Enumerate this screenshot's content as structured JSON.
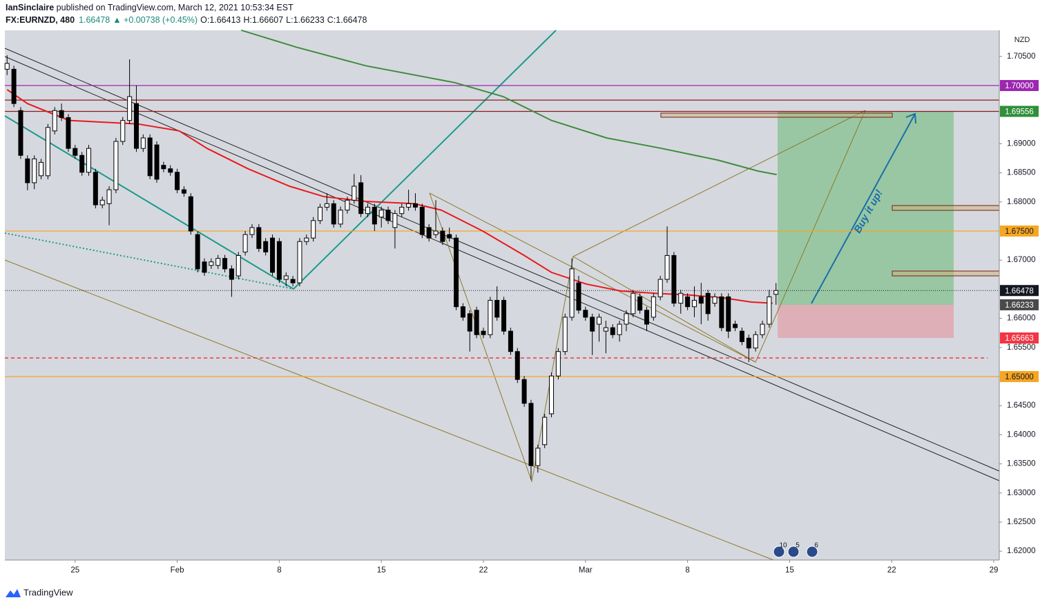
{
  "header": {
    "author": "IanSinclaire",
    "published": " published on TradingView.com, March 12, 2021 10:53:34 EST",
    "symbol": "FX:EURNZD, 480",
    "last": "1.66478",
    "change": "▲ +0.00738 (+0.45%)",
    "ohlc": [
      "O:1.66413",
      "H:1.66607",
      "L:1.66233",
      "C:1.66478"
    ]
  },
  "footer": {
    "brand": "TradingView"
  },
  "chart_data": {
    "type": "candlestick",
    "currency": "NZD",
    "annotation": "Buy it up!",
    "xlim": [
      -10.33,
      135.81
    ],
    "ylim": [
      1.61848,
      1.70948
    ],
    "xticks": [
      {
        "value": 0,
        "label": "25"
      },
      {
        "value": 15,
        "label": "Feb"
      },
      {
        "value": 30,
        "label": "8"
      },
      {
        "value": 45,
        "label": "15"
      },
      {
        "value": 60,
        "label": "22"
      },
      {
        "value": 75,
        "label": "Mar"
      },
      {
        "value": 90,
        "label": "8"
      },
      {
        "value": 105,
        "label": "15"
      },
      {
        "value": 120,
        "label": "22"
      },
      {
        "value": 135,
        "label": "29"
      }
    ],
    "yticks": [
      {
        "value": 1.705,
        "label": "1.70500"
      },
      {
        "value": 1.69,
        "label": "1.69000"
      },
      {
        "value": 1.685,
        "label": "1.68500"
      },
      {
        "value": 1.68,
        "label": "1.68000"
      },
      {
        "value": 1.67,
        "label": "1.67000"
      },
      {
        "value": 1.66,
        "label": "1.66000"
      },
      {
        "value": 1.655,
        "label": "1.65500"
      },
      {
        "value": 1.645,
        "label": "1.64500"
      },
      {
        "value": 1.64,
        "label": "1.64000"
      },
      {
        "value": 1.635,
        "label": "1.63500"
      },
      {
        "value": 1.63,
        "label": "1.63000"
      },
      {
        "value": 1.625,
        "label": "1.62500"
      },
      {
        "value": 1.62,
        "label": "1.62000"
      }
    ],
    "x": [
      -10,
      -9,
      -8,
      -7,
      -6,
      -5,
      -4,
      -3,
      -2,
      -1,
      0,
      1,
      2,
      3,
      4,
      5,
      6,
      7,
      8,
      9,
      10,
      11,
      12,
      13,
      14,
      15,
      16,
      17,
      18,
      19,
      20,
      21,
      22,
      23,
      24,
      25,
      26,
      27,
      28,
      29,
      30,
      31,
      32,
      33,
      34,
      35,
      36,
      37,
      38,
      39,
      40,
      41,
      42,
      43,
      44,
      45,
      46,
      47,
      48,
      49,
      50,
      51,
      52,
      53,
      54,
      55,
      56,
      57,
      58,
      59,
      60,
      61,
      62,
      63,
      64,
      65,
      66,
      67,
      68,
      69,
      70,
      71,
      72,
      73,
      74,
      75,
      76,
      77,
      78,
      79,
      80,
      81,
      82,
      83,
      84,
      85,
      86,
      87,
      88,
      89,
      90,
      91,
      92,
      93,
      94,
      95,
      96,
      97,
      98,
      99,
      100,
      101,
      102,
      103
    ],
    "candles": [
      [
        1.7028,
        1.7052,
        1.7018,
        1.7038
      ],
      [
        1.7028,
        1.7034,
        1.6963,
        1.6969
      ],
      [
        1.6957,
        1.6963,
        1.6874,
        1.688
      ],
      [
        1.6874,
        1.688,
        1.682,
        1.6833
      ],
      [
        1.6833,
        1.688,
        1.6822,
        1.6874
      ],
      [
        1.6845,
        1.6874,
        1.6839,
        1.6868
      ],
      [
        1.6845,
        1.6934,
        1.6839,
        1.6928
      ],
      [
        1.6922,
        1.6963,
        1.6916,
        1.6957
      ],
      [
        1.6957,
        1.6969,
        1.6939,
        1.6945
      ],
      [
        1.6945,
        1.6951,
        1.6886,
        1.6892
      ],
      [
        1.6892,
        1.6898,
        1.6874,
        1.688
      ],
      [
        1.688,
        1.6886,
        1.6845,
        1.6851
      ],
      [
        1.6851,
        1.6898,
        1.6845,
        1.6892
      ],
      [
        1.6851,
        1.6857,
        1.6789,
        1.6795
      ],
      [
        1.6795,
        1.6809,
        1.6789,
        1.6803
      ],
      [
        1.6797,
        1.6827,
        1.676,
        1.6821
      ],
      [
        1.6821,
        1.691,
        1.6815,
        1.6904
      ],
      [
        1.6904,
        1.6946,
        1.6898,
        1.694
      ],
      [
        1.694,
        1.7045,
        1.6934,
        1.6981
      ],
      [
        1.6969,
        1.7,
        1.6886,
        1.6892
      ],
      [
        1.6892,
        1.6916,
        1.6886,
        1.691
      ],
      [
        1.691,
        1.6916,
        1.6839,
        1.6845
      ],
      [
        1.6898,
        1.6904,
        1.6833,
        1.6839
      ],
      [
        1.6863,
        1.6869,
        1.6851,
        1.6857
      ],
      [
        1.6857,
        1.6863,
        1.6845,
        1.6851
      ],
      [
        1.6851,
        1.6857,
        1.6815,
        1.6821
      ],
      [
        1.6821,
        1.6827,
        1.6809,
        1.6815
      ],
      [
        1.6809,
        1.6815,
        1.6744,
        1.675
      ],
      [
        1.6744,
        1.675,
        1.6679,
        1.6685
      ],
      [
        1.6697,
        1.6703,
        1.6673,
        1.6679
      ],
      [
        1.6691,
        1.6703,
        1.6685,
        1.6697
      ],
      [
        1.6691,
        1.6709,
        1.6685,
        1.6703
      ],
      [
        1.6703,
        1.6709,
        1.6679,
        1.6685
      ],
      [
        1.6685,
        1.6691,
        1.6637,
        1.6667
      ],
      [
        1.6673,
        1.6714,
        1.6667,
        1.6708
      ],
      [
        1.6714,
        1.675,
        1.6708,
        1.6744
      ],
      [
        1.6744,
        1.6762,
        1.6738,
        1.6756
      ],
      [
        1.6756,
        1.6762,
        1.6714,
        1.672
      ],
      [
        1.6732,
        1.6738,
        1.6708,
        1.6714
      ],
      [
        1.6738,
        1.6744,
        1.6673,
        1.6679
      ],
      [
        1.6732,
        1.6738,
        1.6661,
        1.6667
      ],
      [
        1.6667,
        1.6679,
        1.6655,
        1.6673
      ],
      [
        1.6667,
        1.6673,
        1.6655,
        1.6661
      ],
      [
        1.6661,
        1.6738,
        1.6655,
        1.6732
      ],
      [
        1.6732,
        1.6744,
        1.6726,
        1.6738
      ],
      [
        1.6738,
        1.6774,
        1.6732,
        1.6768
      ],
      [
        1.6768,
        1.6797,
        1.6762,
        1.6791
      ],
      [
        1.6791,
        1.6815,
        1.6785,
        1.6797
      ],
      [
        1.6797,
        1.6803,
        1.6756,
        1.6762
      ],
      [
        1.6762,
        1.6792,
        1.6756,
        1.6786
      ],
      [
        1.6786,
        1.6809,
        1.678,
        1.6803
      ],
      [
        1.6803,
        1.6848,
        1.6797,
        1.6827
      ],
      [
        1.6833,
        1.6846,
        1.6774,
        1.678
      ],
      [
        1.678,
        1.6797,
        1.6774,
        1.6791
      ],
      [
        1.6791,
        1.6797,
        1.675,
        1.6762
      ],
      [
        1.6774,
        1.6792,
        1.6756,
        1.6786
      ],
      [
        1.6786,
        1.6792,
        1.6762,
        1.6768
      ],
      [
        1.6756,
        1.6786,
        1.672,
        1.678
      ],
      [
        1.678,
        1.6797,
        1.6774,
        1.6791
      ],
      [
        1.6791,
        1.6821,
        1.6785,
        1.6797
      ],
      [
        1.6797,
        1.6815,
        1.6785,
        1.6791
      ],
      [
        1.6791,
        1.6797,
        1.6738,
        1.6744
      ],
      [
        1.6756,
        1.6762,
        1.6732,
        1.6738
      ],
      [
        1.6744,
        1.6803,
        1.6738,
        1.675
      ],
      [
        1.675,
        1.6756,
        1.6726,
        1.6732
      ],
      [
        1.6744,
        1.6756,
        1.6732,
        1.6738
      ],
      [
        1.6738,
        1.6744,
        1.6614,
        1.662
      ],
      [
        1.662,
        1.6626,
        1.6596,
        1.6602
      ],
      [
        1.6608,
        1.6614,
        1.6543,
        1.6578
      ],
      [
        1.6614,
        1.662,
        1.6566,
        1.6572
      ],
      [
        1.6578,
        1.6584,
        1.6566,
        1.6572
      ],
      [
        1.6572,
        1.6637,
        1.6566,
        1.6631
      ],
      [
        1.6631,
        1.6655,
        1.6596,
        1.6602
      ],
      [
        1.6631,
        1.6637,
        1.6572,
        1.6578
      ],
      [
        1.6578,
        1.6584,
        1.6537,
        1.6543
      ],
      [
        1.6543,
        1.6549,
        1.6489,
        1.6495
      ],
      [
        1.6495,
        1.6501,
        1.6448,
        1.6454
      ],
      [
        1.6454,
        1.646,
        1.6323,
        1.6347
      ],
      [
        1.6347,
        1.6383,
        1.6335,
        1.6377
      ],
      [
        1.6383,
        1.6436,
        1.6377,
        1.643
      ],
      [
        1.6436,
        1.6507,
        1.643,
        1.6501
      ],
      [
        1.6501,
        1.6549,
        1.6495,
        1.6543
      ],
      [
        1.6543,
        1.6608,
        1.6537,
        1.6602
      ],
      [
        1.6602,
        1.6703,
        1.6596,
        1.6685
      ],
      [
        1.6661,
        1.6673,
        1.6608,
        1.6614
      ],
      [
        1.6614,
        1.662,
        1.6596,
        1.6602
      ],
      [
        1.6602,
        1.6608,
        1.6537,
        1.6578
      ],
      [
        1.659,
        1.6608,
        1.656,
        1.6602
      ],
      [
        1.6578,
        1.6596,
        1.654,
        1.6584
      ],
      [
        1.6584,
        1.659,
        1.6566,
        1.6572
      ],
      [
        1.6572,
        1.6596,
        1.656,
        1.659
      ],
      [
        1.659,
        1.6614,
        1.6578,
        1.6608
      ],
      [
        1.6608,
        1.6649,
        1.6602,
        1.6643
      ],
      [
        1.6637,
        1.6643,
        1.6608,
        1.6614
      ],
      [
        1.6614,
        1.662,
        1.6578,
        1.659
      ],
      [
        1.6602,
        1.6643,
        1.6596,
        1.6637
      ],
      [
        1.6637,
        1.6673,
        1.6631,
        1.6667
      ],
      [
        1.6667,
        1.6758,
        1.6661,
        1.6708
      ],
      [
        1.6708,
        1.6714,
        1.662,
        1.6626
      ],
      [
        1.6626,
        1.6649,
        1.6608,
        1.6643
      ],
      [
        1.6637,
        1.6643,
        1.6614,
        1.662
      ],
      [
        1.662,
        1.6655,
        1.6602,
        1.6631
      ],
      [
        1.6637,
        1.6661,
        1.659,
        1.6626
      ],
      [
        1.6643,
        1.6649,
        1.6596,
        1.6608
      ],
      [
        1.6626,
        1.6643,
        1.662,
        1.6637
      ],
      [
        1.6637,
        1.6643,
        1.6578,
        1.6584
      ],
      [
        1.6637,
        1.6643,
        1.6566,
        1.6578
      ],
      [
        1.659,
        1.6596,
        1.6578,
        1.6584
      ],
      [
        1.6578,
        1.6584,
        1.6554,
        1.656
      ],
      [
        1.6566,
        1.6572,
        1.6525,
        1.6549
      ],
      [
        1.6549,
        1.6578,
        1.6543,
        1.6572
      ],
      [
        1.6572,
        1.6596,
        1.6566,
        1.659
      ],
      [
        1.659,
        1.6649,
        1.6584,
        1.6637
      ],
      [
        1.66413,
        1.66607,
        1.66233,
        1.66478
      ]
    ],
    "moving_averages": [
      {
        "color": "#e8191c",
        "x": [
          -10,
          -7,
          -0.9,
          9.2,
          15.3,
          19.4,
          25.4,
          31.5,
          36.6,
          42.7,
          49.8,
          53.8,
          59.9,
          66,
          70,
          75.1,
          80.2,
          85.2,
          90.3,
          95.4,
          99.4,
          102.5
        ],
        "values": [
          1.6993,
          1.6969,
          1.694,
          1.6934,
          1.6922,
          1.6892,
          1.6857,
          1.6827,
          1.6809,
          1.6801,
          1.6797,
          1.6786,
          1.675,
          1.6708,
          1.6679,
          1.6659,
          1.6647,
          1.6643,
          1.664,
          1.6635,
          1.6628,
          1.6626
        ]
      },
      {
        "color": "#3d8c3d",
        "x": [
          24.4,
          32.5,
          42.7,
          55.8,
          62.9,
          70,
          78.1,
          86.2,
          94.4,
          100.4,
          103.1
        ],
        "values": [
          1.7095,
          1.7066,
          1.7034,
          1.7005,
          1.6981,
          1.694,
          1.691,
          1.6892,
          1.6872,
          1.6853,
          1.6847
        ]
      }
    ],
    "levels": [
      {
        "value": 1.7,
        "label": "1.70000",
        "color": "#9c27b0",
        "style": "solid"
      },
      {
        "value": 1.6975,
        "color": "#8b1a1a",
        "style": "solid"
      },
      {
        "value": 1.69556,
        "color": "#8b1a1a",
        "style": "solid",
        "marker": "#2f8f3a"
      },
      {
        "value": 1.675,
        "label": "1.67500",
        "color": "#f5a623",
        "style": "solid"
      },
      {
        "value": 1.66478,
        "color": "#131722",
        "style": "dotted",
        "marker": "#131722"
      },
      {
        "value": 1.66233,
        "color": "#555",
        "style": "none",
        "marker": "#4a4a4a"
      },
      {
        "value": 1.65663,
        "color": "#f23645",
        "style": "none",
        "marker": "#f23645"
      },
      {
        "value": 1.6532,
        "color": "#f23645",
        "style": "dashed"
      },
      {
        "value": 1.65,
        "label": "1.65000",
        "color": "#f5a623",
        "style": "solid"
      }
    ],
    "events": [
      "10",
      "5",
      "6"
    ]
  }
}
